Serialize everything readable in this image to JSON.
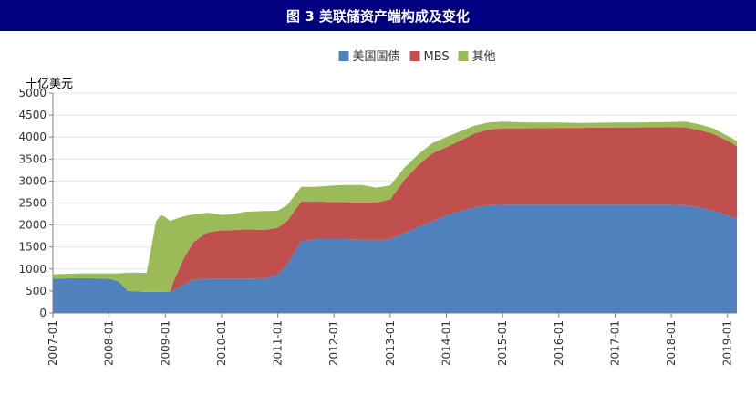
{
  "header": {
    "title": "图 3  美联储资产端构成及变化"
  },
  "chart_data": {
    "type": "area",
    "stacked": true,
    "unit_label": "十亿美元",
    "ylim": [
      0,
      5000
    ],
    "yticks": [
      0,
      500,
      1000,
      1500,
      2000,
      2500,
      3000,
      3500,
      4000,
      4500,
      5000
    ],
    "xlim": [
      "2007-01",
      "2019-03"
    ],
    "xticks": [
      "2007-01",
      "2008-01",
      "2009-01",
      "2010-01",
      "2011-01",
      "2012-01",
      "2013-01",
      "2014-01",
      "2015-01",
      "2016-01",
      "2017-01",
      "2018-01",
      "2019-01"
    ],
    "legend_position": "top-center",
    "x": [
      "2007-01",
      "2007-07",
      "2008-01",
      "2008-03",
      "2008-05",
      "2008-09",
      "2008-10",
      "2008-11",
      "2008-12",
      "2009-01",
      "2009-02",
      "2009-03",
      "2009-05",
      "2009-07",
      "2009-10",
      "2010-01",
      "2010-03",
      "2010-06",
      "2010-10",
      "2010-11",
      "2011-01",
      "2011-03",
      "2011-06",
      "2011-09",
      "2012-01",
      "2012-03",
      "2012-07",
      "2012-10",
      "2013-01",
      "2013-04",
      "2013-07",
      "2013-10",
      "2014-01",
      "2014-04",
      "2014-07",
      "2014-10",
      "2015-01",
      "2015-06",
      "2016-01",
      "2016-06",
      "2017-01",
      "2017-06",
      "2018-01",
      "2018-04",
      "2018-07",
      "2018-10",
      "2019-01",
      "2019-03"
    ],
    "series": [
      {
        "name": "美国国债",
        "color": "#4F81BD",
        "values": [
          780,
          790,
          780,
          720,
          500,
          480,
          480,
          480,
          480,
          480,
          490,
          530,
          650,
          760,
          780,
          780,
          780,
          780,
          790,
          800,
          880,
          1100,
          1630,
          1680,
          1680,
          1680,
          1670,
          1660,
          1680,
          1820,
          1960,
          2080,
          2220,
          2320,
          2400,
          2450,
          2460,
          2460,
          2460,
          2460,
          2460,
          2460,
          2460,
          2450,
          2400,
          2330,
          2220,
          2150
        ]
      },
      {
        "name": "MBS",
        "color": "#C0504D",
        "values": [
          0,
          0,
          0,
          0,
          0,
          0,
          0,
          0,
          0,
          0,
          0,
          250,
          600,
          850,
          1050,
          1100,
          1100,
          1120,
          1100,
          1100,
          1060,
          990,
          900,
          860,
          840,
          840,
          840,
          850,
          900,
          1200,
          1400,
          1550,
          1550,
          1600,
          1680,
          1720,
          1740,
          1740,
          1750,
          1750,
          1760,
          1760,
          1770,
          1770,
          1760,
          1740,
          1700,
          1640
        ]
      },
      {
        "name": "其他",
        "color": "#9BBB59",
        "values": [
          100,
          110,
          120,
          180,
          420,
          430,
          1000,
          1600,
          1750,
          1700,
          1600,
          1350,
          950,
          630,
          450,
          350,
          360,
          400,
          430,
          420,
          390,
          360,
          340,
          330,
          380,
          390,
          400,
          340,
          320,
          280,
          250,
          230,
          230,
          210,
          180,
          160,
          150,
          130,
          120,
          110,
          110,
          110,
          110,
          130,
          130,
          130,
          110,
          120
        ]
      }
    ]
  }
}
